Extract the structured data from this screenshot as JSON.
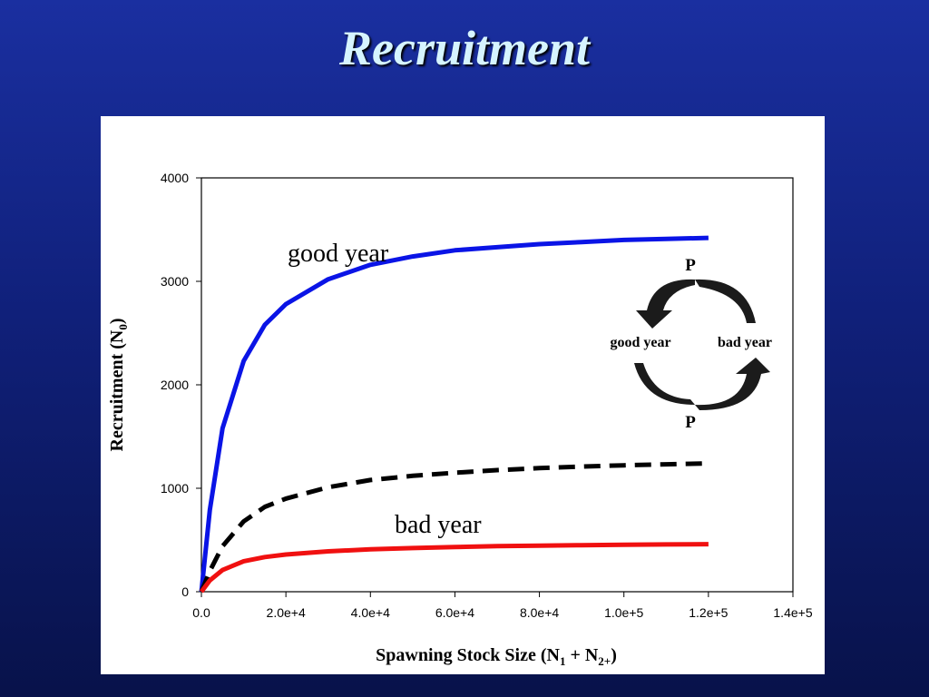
{
  "slide": {
    "title": "Recruitment"
  },
  "chart_data": {
    "type": "line",
    "xlabel_main": "Spawning Stock Size (N",
    "xlabel_sub1": "1",
    "xlabel_mid": " + N",
    "xlabel_sub2": "2+",
    "xlabel_end": ")",
    "ylabel_main": "Recruitment (N",
    "ylabel_sub": "0",
    "ylabel_end": ")",
    "xlim": [
      0,
      140000
    ],
    "ylim": [
      0,
      4000
    ],
    "xticks": [
      0,
      20000,
      40000,
      60000,
      80000,
      100000,
      120000,
      140000
    ],
    "xtick_labels": [
      "0.0",
      "2.0e+4",
      "4.0e+4",
      "6.0e+4",
      "8.0e+4",
      "1.0e+5",
      "1.2e+5",
      "1.4e+5"
    ],
    "yticks": [
      0,
      1000,
      2000,
      3000,
      4000
    ],
    "ytick_labels": [
      "0",
      "1000",
      "2000",
      "3000",
      "4000"
    ],
    "grid": false,
    "series": [
      {
        "key": "good",
        "color": "#0a14e6",
        "style": "solid",
        "x": [
          0,
          2000,
          5000,
          10000,
          15000,
          20000,
          30000,
          40000,
          50000,
          60000,
          70000,
          80000,
          90000,
          100000,
          110000,
          120000
        ],
        "y": [
          0,
          790,
          1580,
          2230,
          2580,
          2780,
          3020,
          3160,
          3240,
          3300,
          3330,
          3360,
          3380,
          3400,
          3410,
          3420
        ]
      },
      {
        "key": "average",
        "color": "#000000",
        "style": "dashed",
        "x": [
          0,
          2000,
          5000,
          10000,
          15000,
          20000,
          30000,
          40000,
          50000,
          60000,
          70000,
          80000,
          90000,
          100000,
          110000,
          120000
        ],
        "y": [
          0,
          200,
          440,
          680,
          820,
          900,
          1010,
          1080,
          1120,
          1150,
          1175,
          1195,
          1210,
          1222,
          1232,
          1240
        ]
      },
      {
        "key": "bad",
        "color": "#f01010",
        "style": "solid",
        "x": [
          0,
          2000,
          5000,
          10000,
          15000,
          20000,
          30000,
          40000,
          50000,
          60000,
          70000,
          80000,
          90000,
          100000,
          110000,
          120000
        ],
        "y": [
          0,
          110,
          210,
          295,
          335,
          360,
          390,
          410,
          422,
          432,
          440,
          446,
          450,
          454,
          457,
          460
        ]
      }
    ],
    "annotations": {
      "good_year": "good year",
      "bad_year": "bad year"
    },
    "inset": {
      "p_top": "P",
      "p_bottom": "P",
      "left_label": "good year",
      "right_label": "bad year"
    }
  }
}
